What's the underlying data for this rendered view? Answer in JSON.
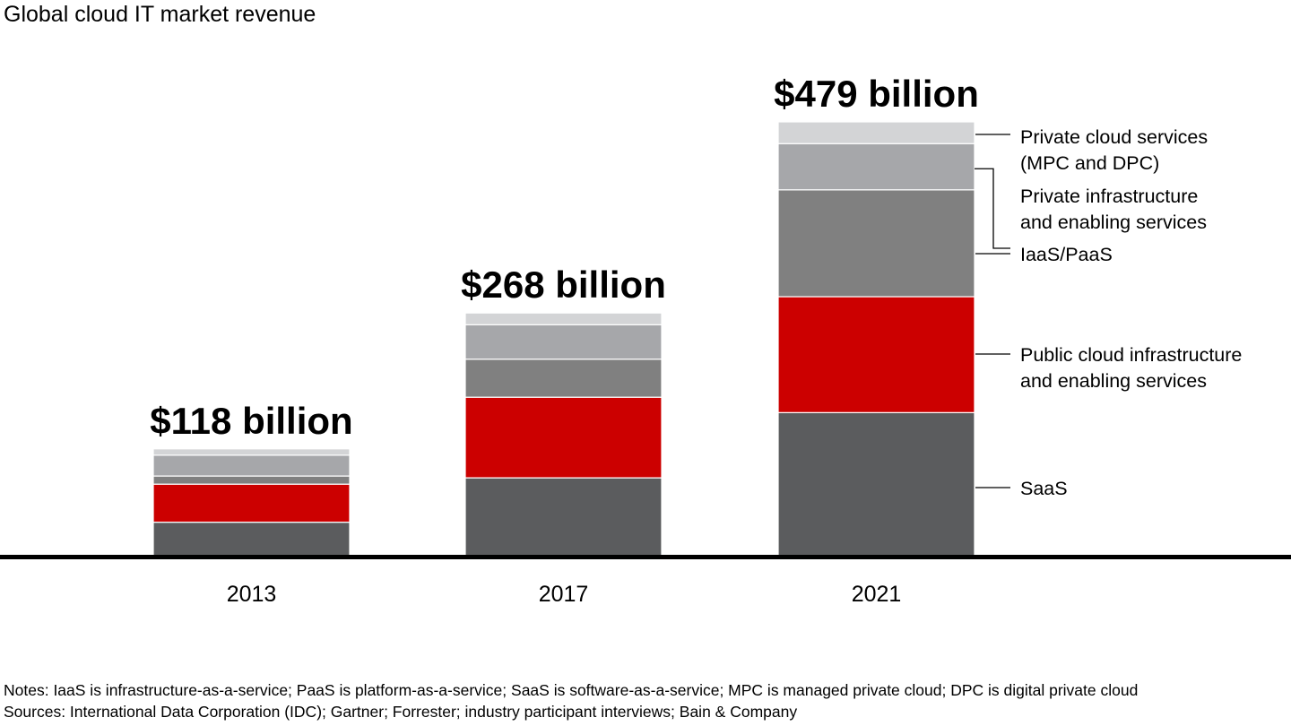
{
  "chart_data": {
    "type": "bar",
    "stacked": true,
    "title": "Global cloud IT market revenue",
    "xlabel": "",
    "ylabel": "",
    "unit": "$ billion",
    "ylim": [
      0,
      479
    ],
    "grid": false,
    "categories": [
      "2013",
      "2017",
      "2021"
    ],
    "totals_labels": [
      "$118 billion",
      "$268 billion",
      "$479 billion"
    ],
    "totals": [
      118,
      268,
      479
    ],
    "series": [
      {
        "name": "SaaS",
        "color": "#5b5c5e",
        "values": [
          37,
          86,
          158
        ]
      },
      {
        "name": "Public cloud infrastructure and enabling services",
        "color": "#cc0000",
        "values": [
          42,
          89,
          128
        ]
      },
      {
        "name": "IaaS/PaaS",
        "color": "#808080",
        "values": [
          9,
          42,
          118
        ]
      },
      {
        "name": "Private infrastructure and enabling services",
        "color": "#a6a7aa",
        "values": [
          23,
          38,
          51
        ]
      },
      {
        "name": "Private cloud services (MPC and DPC)",
        "color": "#d3d4d6",
        "values": [
          7,
          13,
          24
        ]
      }
    ],
    "legend": {
      "placement": "right",
      "labels": [
        [
          "Private cloud services",
          "(MPC and DPC)"
        ],
        [
          "Private infrastructure",
          "and enabling services"
        ],
        [
          "IaaS/PaaS"
        ],
        [
          "Public cloud infrastructure",
          "and enabling services"
        ],
        [
          "SaaS"
        ]
      ]
    }
  },
  "notes": "Notes: IaaS is infrastructure-as-a-service; PaaS is platform-as-a-service; SaaS is software-as-a-service; MPC is managed private cloud; DPC is digital private cloud",
  "sources": "Sources: International Data Corporation (IDC); Gartner; Forrester; industry participant interviews; Bain & Company"
}
